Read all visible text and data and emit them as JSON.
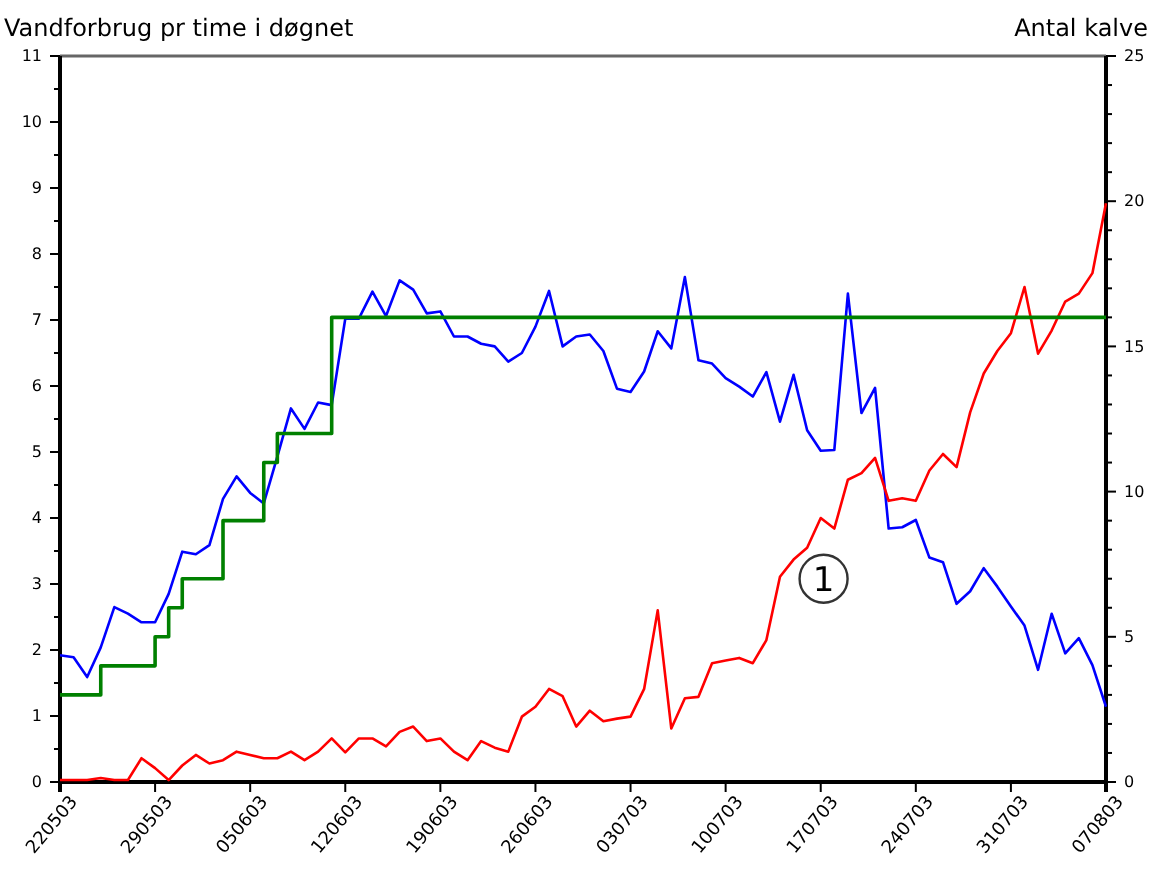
{
  "chart_data": {
    "type": "line",
    "ylabel": "Vandforbrug pr time i døgnet",
    "y2label": "Antal kalve",
    "x": [
      "--05-22",
      "--05-23",
      "--05-24",
      "--05-25",
      "--05-26",
      "--05-27",
      "--05-28",
      "--05-29",
      "--05-30",
      "--05-31",
      "--06-01",
      "--06-02",
      "--06-03",
      "--06-04",
      "--06-05",
      "--06-06",
      "--06-07",
      "--06-08",
      "--06-09",
      "--06-10",
      "--06-11",
      "--06-12",
      "--06-13",
      "--06-14",
      "--06-15",
      "--06-16",
      "--06-17",
      "--06-18",
      "--06-19",
      "--06-20",
      "--06-21",
      "--06-22",
      "--06-23",
      "--06-24",
      "--06-25",
      "--06-26",
      "--06-27",
      "--06-28",
      "--06-29",
      "--06-30",
      "--07-01",
      "--07-02",
      "--07-03",
      "--07-04",
      "--07-05",
      "--07-06",
      "--07-07",
      "--07-08",
      "--07-09",
      "--07-10",
      "--07-11",
      "--07-12",
      "--07-13",
      "--07-14",
      "--07-15",
      "--07-16",
      "--07-17",
      "--07-18",
      "--07-19",
      "--07-20",
      "--07-21",
      "--07-22",
      "--07-23",
      "--07-24",
      "--07-25",
      "--07-26",
      "--07-27",
      "--07-28",
      "--07-29",
      "--07-30",
      "--07-31",
      "--08-01",
      "--08-02",
      "--08-03",
      "--08-04",
      "--08-05",
      "--08-06",
      "--08-07"
    ],
    "series": [
      {
        "color": "#0000ff",
        "values": [
          1.92,
          1.89,
          1.59,
          2.04,
          2.65,
          2.55,
          2.42,
          2.42,
          2.85,
          3.49,
          3.45,
          3.59,
          4.29,
          4.63,
          4.38,
          4.22,
          4.93,
          5.66,
          5.35,
          5.75,
          5.71,
          7.02,
          7.02,
          7.43,
          7.06,
          7.6,
          7.46,
          7.1,
          7.13,
          6.75,
          6.75,
          6.64,
          6.6,
          6.37,
          6.5,
          6.9,
          7.44,
          6.6,
          6.75,
          6.78,
          6.53,
          5.96,
          5.91,
          6.22,
          6.83,
          6.57,
          7.65,
          6.39,
          6.34,
          6.12,
          5.99,
          5.84,
          6.21,
          5.46,
          6.17,
          5.33,
          5.02,
          5.03,
          7.4,
          5.59,
          5.97,
          3.84,
          3.86,
          3.97,
          3.4,
          3.33,
          2.7,
          2.89,
          3.24,
          2.96,
          2.66,
          2.37,
          1.7,
          2.55,
          1.95,
          2.18,
          1.77,
          1.14
        ]
      },
      {
        "color": "#ff0000",
        "values": [
          0.03,
          0.03,
          0.03,
          0.06,
          0.03,
          0.03,
          0.36,
          0.21,
          0.03,
          0.25,
          0.41,
          0.28,
          0.33,
          0.46,
          0.41,
          0.36,
          0.36,
          0.46,
          0.33,
          0.46,
          0.66,
          0.45,
          0.66,
          0.66,
          0.54,
          0.76,
          0.84,
          0.62,
          0.66,
          0.46,
          0.33,
          0.62,
          0.52,
          0.46,
          0.99,
          1.14,
          1.41,
          1.3,
          0.84,
          1.08,
          0.92,
          0.96,
          0.99,
          1.41,
          2.6,
          0.81,
          1.27,
          1.29,
          1.8,
          1.84,
          1.88,
          1.8,
          2.15,
          3.11,
          3.37,
          3.55,
          4.0,
          3.84,
          4.58,
          4.68,
          4.91,
          4.26,
          4.3,
          4.26,
          4.72,
          4.97,
          4.77,
          5.6,
          6.19,
          6.53,
          6.8,
          7.5,
          6.49,
          6.84,
          7.28,
          7.4,
          7.71,
          8.77
        ]
      },
      {
        "type": "step",
        "axis": "y2",
        "color": "#008000",
        "x": [
          "--05-22",
          "--05-25",
          "--05-29",
          "--05-30",
          "--05-31",
          "--06-03",
          "--06-06",
          "--06-07",
          "--06-11",
          "--08-07"
        ],
        "values": [
          3,
          4,
          5,
          6,
          7,
          9,
          11,
          12,
          16,
          16
        ]
      }
    ],
    "xlim": [
      "--05-22",
      "--08-07"
    ],
    "xticks": [
      {
        "value": "--05-22",
        "label": "220503"
      },
      {
        "value": "--05-29",
        "label": "290503"
      },
      {
        "value": "--06-05",
        "label": "050603"
      },
      {
        "value": "--06-12",
        "label": "120603"
      },
      {
        "value": "--06-19",
        "label": "190603"
      },
      {
        "value": "--06-26",
        "label": "260603"
      },
      {
        "value": "--07-03",
        "label": "030703"
      },
      {
        "value": "--07-10",
        "label": "100703"
      },
      {
        "value": "--07-17",
        "label": "170703"
      },
      {
        "value": "--07-24",
        "label": "240703"
      },
      {
        "value": "--07-31",
        "label": "310703"
      },
      {
        "value": "--08-07",
        "label": "070803"
      }
    ],
    "ylim": [
      0,
      11
    ],
    "yticks": [
      0,
      {
        "value": 0.5,
        "label": null
      },
      1,
      {
        "value": 1.5,
        "label": null
      },
      2,
      {
        "value": 2.5,
        "label": null
      },
      3,
      {
        "value": 3.5,
        "label": null
      },
      4,
      {
        "value": 4.5,
        "label": null
      },
      5,
      {
        "value": 5.5,
        "label": null
      },
      6,
      {
        "value": 6.5,
        "label": null
      },
      7,
      {
        "value": 7.5,
        "label": null
      },
      8,
      {
        "value": 8.5,
        "label": null
      },
      9,
      {
        "value": 9.5,
        "label": null
      },
      10,
      {
        "value": 10.5,
        "label": null
      },
      11
    ],
    "y2lim": [
      0,
      25
    ],
    "y2ticks": [
      0,
      {
        "value": 1,
        "label": null
      },
      {
        "value": 2,
        "label": null
      },
      {
        "value": 3,
        "label": null
      },
      {
        "value": 4,
        "label": null
      },
      5,
      {
        "value": 6,
        "label": null
      },
      {
        "value": 7,
        "label": null
      },
      {
        "value": 8,
        "label": null
      },
      {
        "value": 9,
        "label": null
      },
      10,
      {
        "value": 11,
        "label": null
      },
      {
        "value": 12,
        "label": null
      },
      {
        "value": 13,
        "label": null
      },
      {
        "value": 14,
        "label": null
      },
      15,
      {
        "value": 16,
        "label": null
      },
      {
        "value": 17,
        "label": null
      },
      {
        "value": 18,
        "label": null
      },
      {
        "value": 19,
        "label": null
      },
      20,
      {
        "value": 21,
        "label": null
      },
      {
        "value": 22,
        "label": null
      },
      {
        "value": 23,
        "label": null
      },
      {
        "value": 24,
        "label": null
      },
      25
    ],
    "annotations": [
      "1"
    ],
    "grid": false,
    "marker": "none",
    "line_style": "solid"
  }
}
